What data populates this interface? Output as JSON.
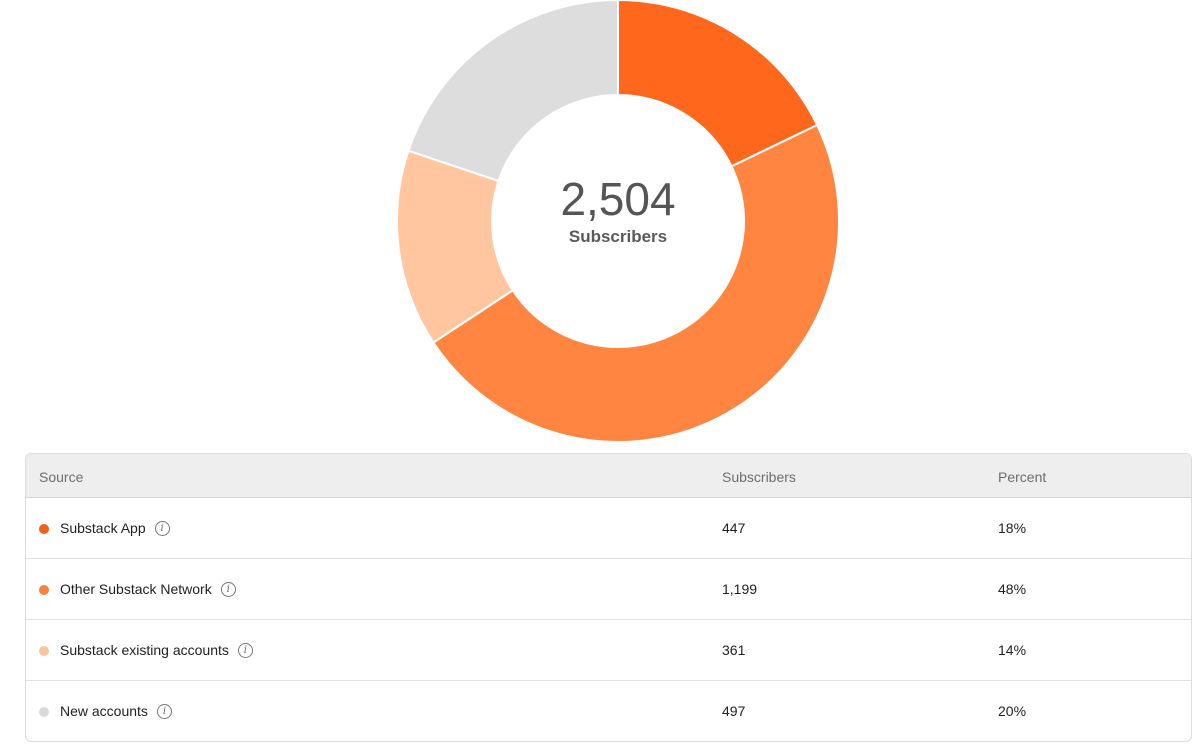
{
  "chart_data": {
    "type": "pie",
    "total": "2,504",
    "total_label": "Subscribers",
    "slices": [
      {
        "label": "Substack App",
        "value": 447,
        "percent": 18,
        "color": "#ff671d"
      },
      {
        "label": "Other Substack Network",
        "value": 1199,
        "percent": 48,
        "color": "#ff8541"
      },
      {
        "label": "Substack existing accounts",
        "value": 361,
        "percent": 14,
        "color": "#ffc6a0"
      },
      {
        "label": "New accounts",
        "value": 497,
        "percent": 20,
        "color": "#dddddd"
      }
    ]
  },
  "table": {
    "headers": {
      "source": "Source",
      "subscribers": "Subscribers",
      "percent": "Percent"
    },
    "rows": [
      {
        "source": "Substack App",
        "subscribers": "447",
        "percent": "18%",
        "color": "#f2611c"
      },
      {
        "source": "Other Substack Network",
        "subscribers": "1,199",
        "percent": "48%",
        "color": "#f5823f"
      },
      {
        "source": "Substack existing accounts",
        "subscribers": "361",
        "percent": "14%",
        "color": "#f9c49e"
      },
      {
        "source": "New accounts",
        "subscribers": "497",
        "percent": "20%",
        "color": "#d9d9d9"
      }
    ],
    "info_icon": "info-circle-icon"
  }
}
